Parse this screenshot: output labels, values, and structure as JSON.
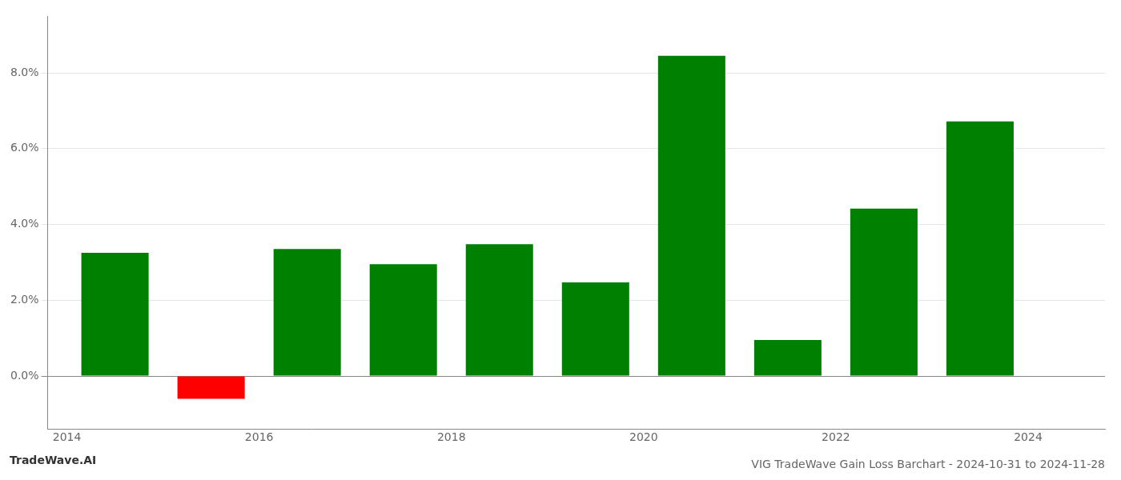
{
  "chart_data": {
    "type": "bar",
    "title": "VIG TradeWave Gain Loss Barchart - 2024-10-31 to 2024-11-28",
    "annotations": [
      "TradeWave.AI"
    ],
    "x": [
      2014.5,
      2015.5,
      2016.5,
      2017.5,
      2018.5,
      2019.5,
      2020.5,
      2021.5,
      2022.5,
      2023.5
    ],
    "values": [
      0.0325,
      -0.006,
      0.0335,
      0.0295,
      0.0348,
      0.0247,
      0.0845,
      0.0095,
      0.0442,
      0.0672
    ],
    "colors": [
      "#008000",
      "#ff0000",
      "#008000",
      "#008000",
      "#008000",
      "#008000",
      "#008000",
      "#008000",
      "#008000",
      "#008000"
    ],
    "xlim": [
      2013.8,
      2024.8
    ],
    "xticks": [
      2014,
      2016,
      2018,
      2020,
      2022,
      2024
    ],
    "ylim": [
      -0.014,
      0.095
    ],
    "yticks": [
      {
        "value": 0.0,
        "label": "0.0%"
      },
      {
        "value": 0.02,
        "label": "2.0%"
      },
      {
        "value": 0.04,
        "label": "4.0%"
      },
      {
        "value": 0.06,
        "label": "6.0%"
      },
      {
        "value": 0.08,
        "label": "8.0%"
      }
    ],
    "grid": true
  }
}
